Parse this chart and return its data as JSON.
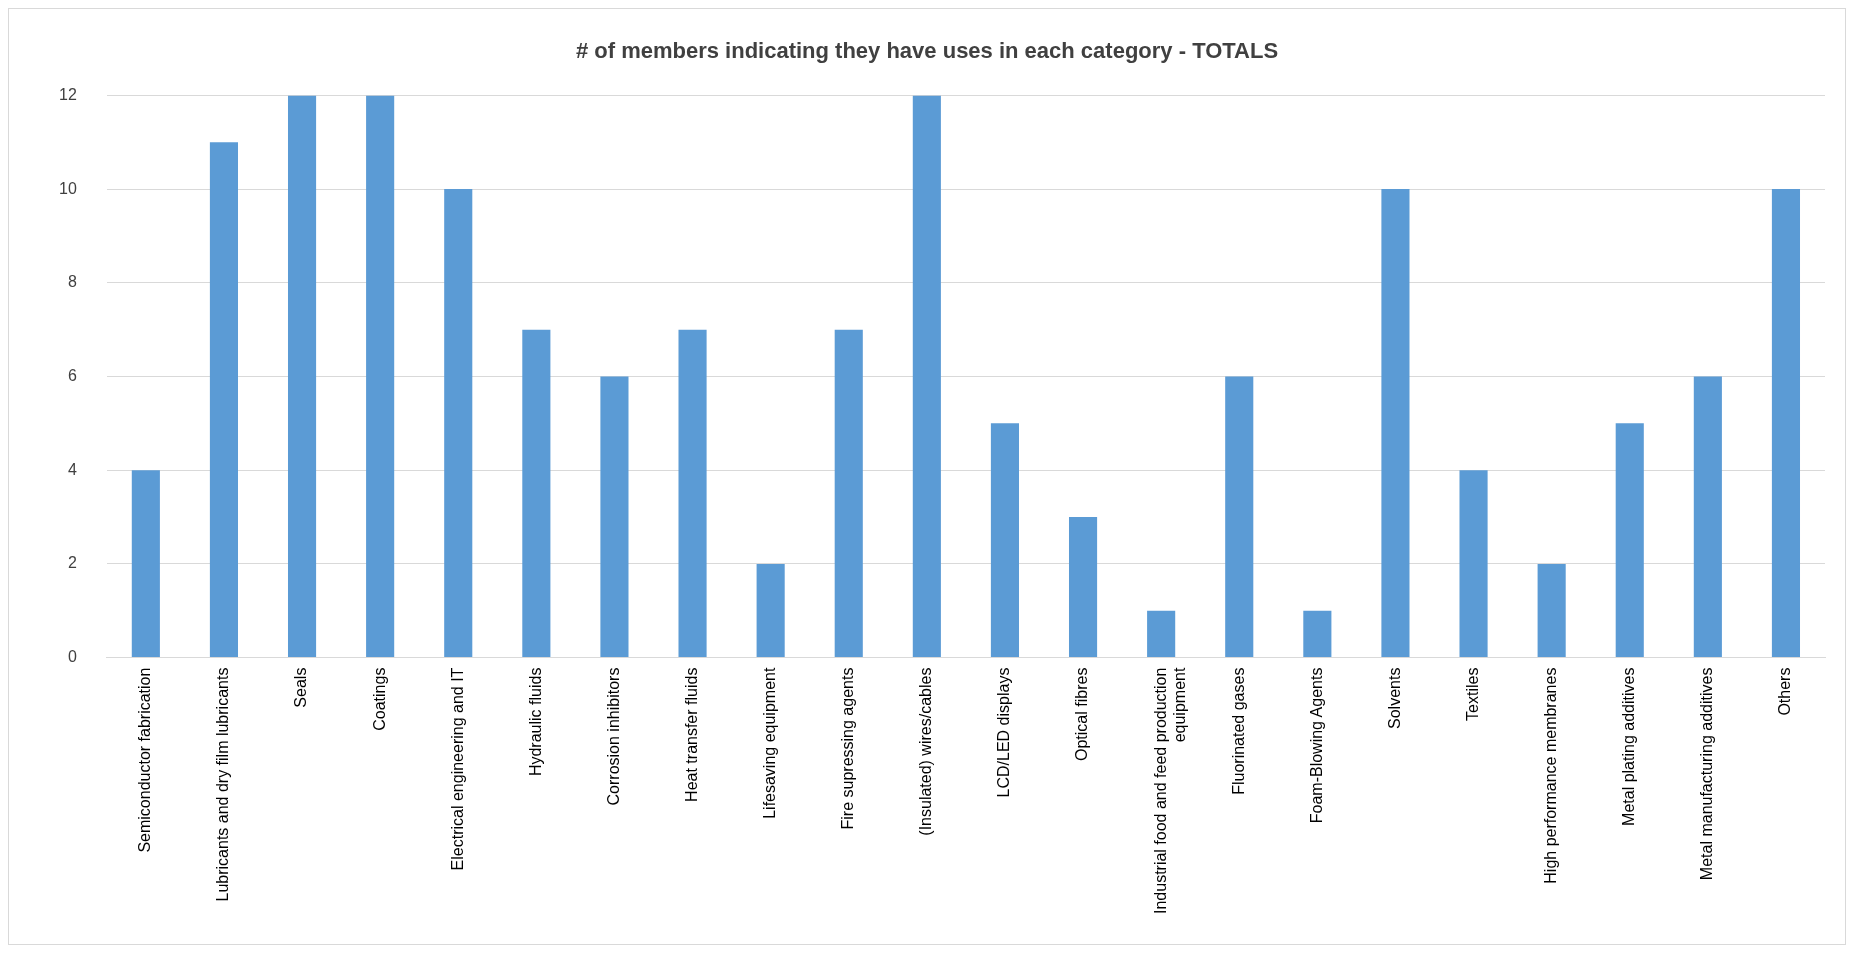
{
  "chart_data": {
    "type": "bar",
    "title": "# of members indicating they have uses in each category - TOTALS",
    "categories": [
      "Semiconductor fabrication",
      "Lubricants and dry film lubricants",
      "Seals",
      "Coatings",
      "Electrical engineering and IT",
      "Hydraulic fluids",
      "Corrosion inhibitors",
      "Heat transfer fluids",
      "Lifesaving equipment",
      "Fire supressing agents",
      "(Insulated) wires/cables",
      "LCD/LED displays",
      "Optical fibres",
      "Industrial food and feed production equipment",
      "Fluorinated gases",
      "Foam-Blowing Agents",
      "Solvents",
      "Textiles",
      "High performance membranes",
      "Metal plating additives",
      "Metal manufacturing additives",
      "Others"
    ],
    "values": [
      4,
      11,
      12,
      12,
      10,
      7,
      6,
      7,
      2,
      7,
      12,
      5,
      3,
      1,
      6,
      1,
      10,
      4,
      2,
      5,
      6,
      10
    ],
    "color": "#5b9bd5",
    "ylim": [
      0,
      12
    ],
    "yticks": [
      0,
      2,
      4,
      6,
      8,
      10,
      12
    ],
    "grid": "y",
    "legend": false
  }
}
